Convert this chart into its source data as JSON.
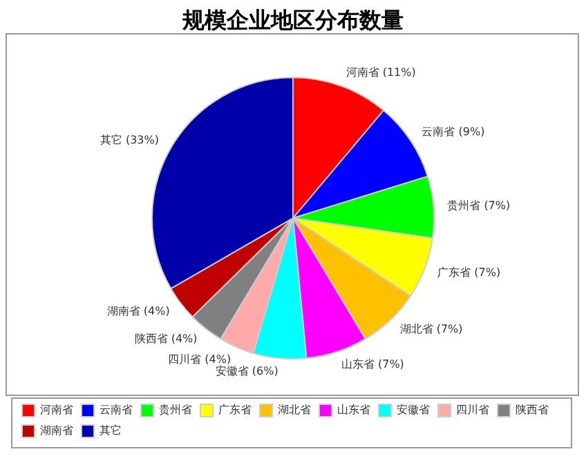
{
  "chart_data": {
    "type": "pie",
    "title": "规模企业地区分布数量",
    "categories": [
      "河南省",
      "云南省",
      "贵州省",
      "广东省",
      "湖北省",
      "山东省",
      "安徽省",
      "四川省",
      "陕西省",
      "湖南省",
      "其它"
    ],
    "values": [
      11,
      9,
      7,
      7,
      7,
      7,
      6,
      4,
      4,
      4,
      33
    ],
    "value_labels": [
      "(11%)",
      "(9%)",
      "(7%)",
      "(7%)",
      "(7%)",
      "(7%)",
      "(6%)",
      "(4%)",
      "(4%)",
      "(4%)",
      "(33%)"
    ],
    "colors": [
      "#ff0000",
      "#0000ff",
      "#00ff00",
      "#ffff00",
      "#ffc000",
      "#ff00ff",
      "#00ffff",
      "#ffaaaa",
      "#808080",
      "#c00000",
      "#0000aa"
    ],
    "legend": "bottom"
  }
}
